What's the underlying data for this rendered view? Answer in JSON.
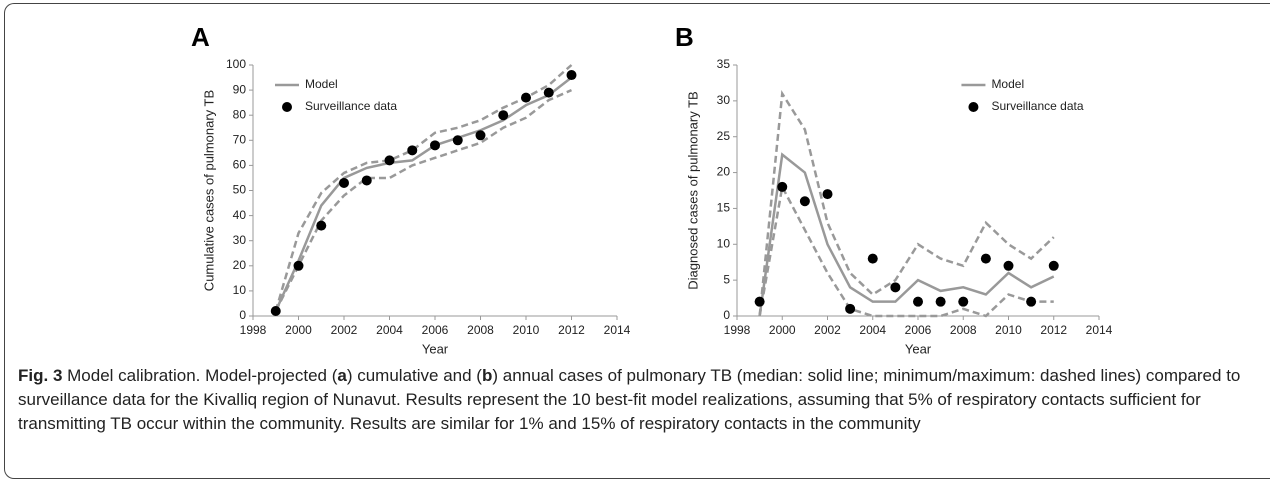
{
  "chart_data": [
    {
      "type": "line",
      "panel": "A",
      "xlabel": "Year",
      "ylabel": "Cumulative cases of pulmonary TB",
      "x": [
        1999,
        2000,
        2001,
        2002,
        2003,
        2004,
        2005,
        2006,
        2007,
        2008,
        2009,
        2010,
        2011,
        2012
      ],
      "series": [
        {
          "name": "Model",
          "color": "#999999",
          "style": "solid",
          "values": [
            2,
            22,
            44,
            55,
            59,
            61,
            62,
            68,
            71,
            74,
            78,
            84,
            88,
            95
          ]
        },
        {
          "color": "#999999",
          "style": "dashed",
          "values": [
            2,
            33,
            49,
            57,
            61,
            62,
            66,
            73,
            75,
            78,
            83,
            87,
            92,
            100
          ]
        },
        {
          "color": "#999999",
          "style": "dashed",
          "values": [
            2,
            20,
            38,
            48,
            55,
            55,
            60,
            63,
            66,
            69,
            75,
            79,
            86,
            90
          ]
        },
        {
          "name": "Surveillance data",
          "color": "#000000",
          "style": "markers",
          "values": [
            2,
            20,
            36,
            53,
            54,
            62,
            66,
            68,
            70,
            72,
            80,
            87,
            89,
            96
          ]
        }
      ],
      "xlim": [
        1998,
        2014
      ],
      "xticks": [
        1998,
        2000,
        2002,
        2004,
        2006,
        2008,
        2010,
        2012,
        2014
      ],
      "ylim": [
        0,
        100
      ],
      "yticks": [
        0,
        10,
        20,
        30,
        40,
        50,
        60,
        70,
        80,
        90,
        100
      ],
      "legend": "upper left"
    },
    {
      "type": "line",
      "panel": "B",
      "xlabel": "Year",
      "ylabel": "Diagnosed cases of pulmonary TB",
      "x": [
        1999,
        2000,
        2001,
        2002,
        2003,
        2004,
        2005,
        2006,
        2007,
        2008,
        2009,
        2010,
        2011,
        2012
      ],
      "series": [
        {
          "name": "Model",
          "color": "#999999",
          "style": "solid",
          "values": [
            0,
            22.5,
            20,
            10,
            4,
            2,
            2,
            5,
            3.5,
            4,
            3,
            6,
            4,
            5.5
          ]
        },
        {
          "color": "#999999",
          "style": "dashed",
          "values": [
            0,
            31,
            26,
            13,
            6,
            3,
            5,
            10,
            8,
            7,
            13,
            10,
            8,
            11
          ]
        },
        {
          "color": "#999999",
          "style": "dashed",
          "values": [
            0,
            18,
            12,
            6,
            1,
            0,
            0,
            0,
            0,
            1,
            0,
            3,
            2,
            2
          ]
        },
        {
          "name": "Surveillance data",
          "color": "#000000",
          "style": "markers",
          "values": [
            2,
            18,
            16,
            17,
            1,
            8,
            4,
            2,
            2,
            2,
            8,
            7,
            2,
            7
          ]
        }
      ],
      "xlim": [
        1998,
        2014
      ],
      "xticks": [
        1998,
        2000,
        2002,
        2004,
        2006,
        2008,
        2010,
        2012,
        2014
      ],
      "ylim": [
        0,
        35
      ],
      "yticks": [
        0,
        5,
        10,
        15,
        20,
        25,
        30,
        35
      ],
      "legend": "upper right"
    }
  ],
  "caption": [
    "Fig. 3",
    " Model calibration. Model-projected (",
    "a",
    ") cumulative and (",
    "b",
    ") annual cases of pulmonary TB (median: solid line; minimum/maximum: dashed lines) compared to surveillance data for the Kivalliq region of Nunavut. Results represent the 10 best-fit model realizations, assuming that 5% of respiratory contacts sufficient for transmitting TB occur within the community. Results are similar for 1% and 15% of respiratory contacts in the community"
  ]
}
